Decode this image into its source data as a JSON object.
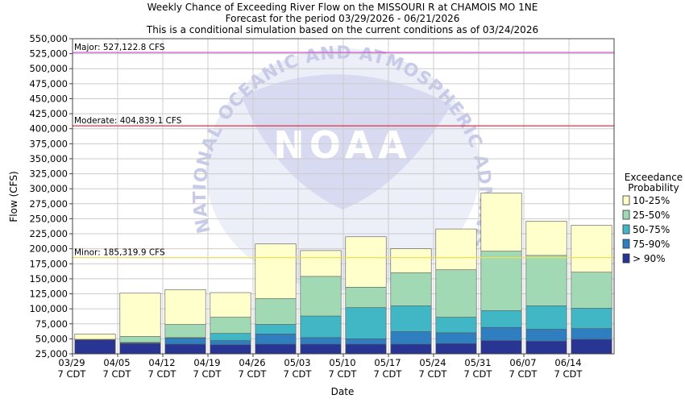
{
  "chart_data": {
    "type": "bar",
    "title_lines": [
      "Weekly Chance of Exceeding River Flow on the MISSOURI R at CHAMOIS MO 1NE",
      "Forecast for the period 03/29/2026 - 06/21/2026",
      "This is a conditional simulation based on the current conditions as of 03/24/2026"
    ],
    "xlabel": "Date",
    "ylabel": "Flow (CFS)",
    "ylim": [
      25000,
      550000
    ],
    "yticks": [
      "25,000",
      "50,000",
      "75,000",
      "100,000",
      "125,000",
      "150,000",
      "175,000",
      "200,000",
      "225,000",
      "250,000",
      "275,000",
      "300,000",
      "325,000",
      "350,000",
      "375,000",
      "400,000",
      "425,000",
      "450,000",
      "475,000",
      "500,000",
      "525,000",
      "550,000"
    ],
    "categories": [
      "03/29",
      "04/05",
      "04/12",
      "04/19",
      "04/26",
      "05/03",
      "05/10",
      "05/17",
      "05/24",
      "05/31",
      "06/07",
      "06/14"
    ],
    "category_sublabel": "7 CDT",
    "grid": true,
    "legend": {
      "title_lines": [
        "Exceedance",
        "Probability"
      ],
      "placement": "right"
    },
    "series": [
      {
        "name": "> 90%",
        "color": "#283593",
        "values": [
          48000,
          42000,
          41000,
          40000,
          41000,
          41000,
          41000,
          41000,
          42000,
          47000,
          46000,
          49000
        ]
      },
      {
        "name": "75-90%",
        "color": "#2f7ebf",
        "values": [
          48000,
          43000,
          51000,
          47000,
          58000,
          52000,
          50000,
          62000,
          60000,
          69000,
          66000,
          67000
        ]
      },
      {
        "name": "50-75%",
        "color": "#41b6c4",
        "values": [
          49000,
          44000,
          52000,
          59000,
          74000,
          88000,
          102000,
          105000,
          86000,
          97000,
          105000,
          101000
        ]
      },
      {
        "name": "25-50%",
        "color": "#a1d9b4",
        "values": [
          49000,
          54000,
          74000,
          86000,
          117000,
          154000,
          136000,
          160000,
          165000,
          196000,
          189000,
          161000
        ]
      },
      {
        "name": "10-25%",
        "color": "#ffffcc",
        "values": [
          58000,
          126000,
          132000,
          127000,
          208000,
          197000,
          220000,
          200000,
          233000,
          293000,
          246000,
          239000
        ]
      }
    ],
    "thresholds": [
      {
        "label": "Major: 527,122.8 CFS",
        "value": 527122.8,
        "color": "#cc44cc"
      },
      {
        "label": "Moderate: 404,839.1 CFS",
        "value": 404839.1,
        "color": "#dd3344"
      },
      {
        "label": "Minor: 185,319.9 CFS",
        "value": 185319.9,
        "color": "#eedd55"
      }
    ],
    "watermark_text": "NATIONAL OCEANIC AND ATMOSPHERIC ADMINISTRATION",
    "watermark_logo": "NOAA"
  }
}
